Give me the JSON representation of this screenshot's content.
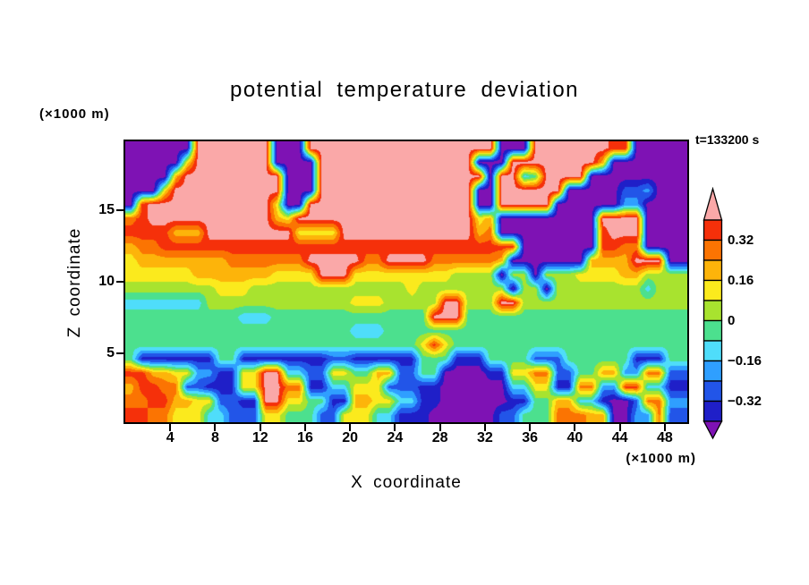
{
  "chart_data": {
    "type": "heatmap",
    "title": "potential temperature deviation",
    "time_label": "t=133200 s",
    "xlabel": "X coordinate",
    "ylabel": "Z coordinate",
    "x_units_label": "(×1000 m)",
    "y_units_label": "(×1000 m)",
    "x_range": [
      0,
      50
    ],
    "z_range": [
      0.2,
      19.8
    ],
    "x_ticks": [
      4,
      8,
      12,
      16,
      20,
      24,
      28,
      32,
      36,
      40,
      44,
      48
    ],
    "z_ticks": [
      5,
      10,
      15
    ],
    "grid_on": false,
    "legend_position": "right-colorbar",
    "levels": [
      -0.4,
      -0.32,
      -0.24,
      -0.16,
      -0.08,
      0,
      0.08,
      0.16,
      0.24,
      0.32,
      0.4
    ],
    "palette_low_to_high": [
      "#7E12B4",
      "#1F1FC8",
      "#2255E8",
      "#2F9FFF",
      "#4FDDFA",
      "#4CE08E",
      "#A8E32F",
      "#FBEA1D",
      "#FDB40A",
      "#FB7402",
      "#F5300A",
      "#FAA8A8"
    ],
    "colorbar": {
      "labels": [
        "0.32",
        "0.16",
        "0",
        "−0.16",
        "−0.32"
      ],
      "label_values": [
        0.32,
        0.16,
        0,
        -0.16,
        -0.32
      ]
    },
    "grid_nx": 50,
    "grid_nz": 20,
    "grid_encoding": "Each row string: one char per x cell left→right, rows listed top→bottom; char 0-9,a,b = palette index 0-11 (0 = below −0.40 K, 11 = above +0.40 K, bin width 0.08)",
    "grid_rows_top_to_bottom": [
      "000000bbbbbbb000bbbbbbbbbbbbbbbbb000bbbbbbbaa00000",
      "000007bbbbbbb0000bbbbbbbbbbbbbb000bbbbbbbb80000000",
      "00008bbbbbbbbb000bbbbbbbbbbbbbbb0bb45bbbb000000000",
      "0007bbbbbbbbbb000bbbbbbbbbbbbbb00bbbbbb00000223000",
      "0abbbbbbbbbbb700bbbbbbbbbbbbbbb00bbbbb000000330000",
      "9abbbbbbbbbbb87bbbbbbbbbbbbbbbb78000000000bbbb0000",
      "aaaa888bbbbbbbb7777bbbbbbbbbbbb89000000000abbb0000",
      "899aaaaaaaaaaaaaaaaaaaaaaaaaaaaaaaa0000000aa990000",
      "7888888889999999bbbbb99bbbb999999800000008888bbb00",
      "77777788888887777bbb777777777666606606667777886666",
      "66666666777666666666666667666666660660666666664666",
      "4444444666666666666677766666bb666bb666666666666666",
      "555555555544455555555555555bbb55555555555555555555",
      "55555555555555555555444555555555555555555555555555",
      "555555555555555555555555557a7555555555555555555555",
      "51111111551111111122111111555111555522255555511155",
      "aa8877331177bb442277558822550000117799225588339922",
      "8aa992211177bb991144777222110000004477119933aa4411",
      "99aa88772211bb775511887744110000001155884410029933",
      "aa997774422277555227774411100000022555999880033922"
    ]
  }
}
